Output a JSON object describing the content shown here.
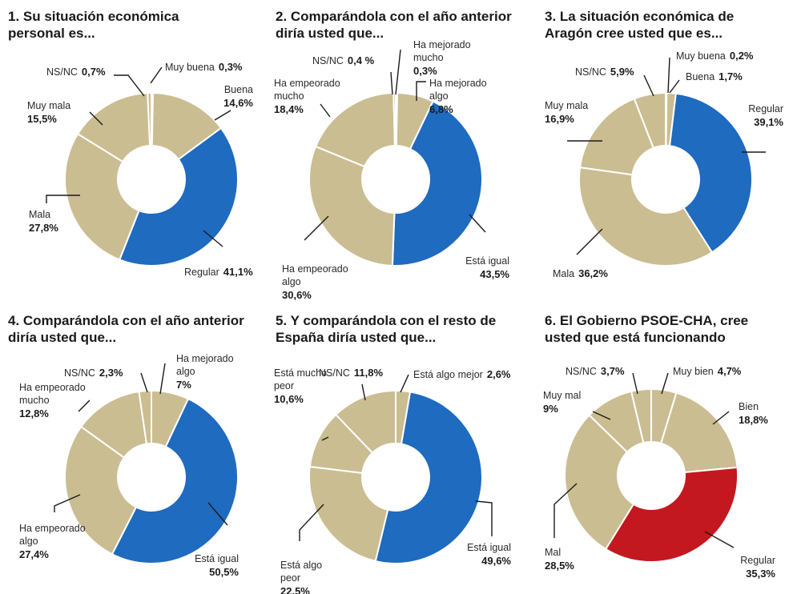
{
  "colors": {
    "neutral": "#cbbd92",
    "blue": "#1e6bbf",
    "red": "#c3181f",
    "stroke": "#ffffff",
    "text": "#1a1a1a"
  },
  "chart_data": [
    {
      "type": "pie",
      "title": [
        "1. Su situación económica",
        "personal es..."
      ],
      "categories": [
        "Muy buena",
        "Buena",
        "Regular",
        "Mala",
        "Muy mala",
        "NS/NC"
      ],
      "display_values": [
        "0,3%",
        "14,6%",
        "41,1%",
        "27,8%",
        "15,5%",
        "0,7%"
      ],
      "values": [
        0.3,
        14.6,
        41.1,
        27.8,
        15.5,
        0.7
      ],
      "highlight": 2
    },
    {
      "type": "pie",
      "title": [
        "2. Comparándola con el año anterior",
        "diría usted que..."
      ],
      "categories": [
        "Ha mejorado mucho",
        "Ha mejorado algo",
        "Está igual",
        "Ha empeorado algo",
        "Ha empeorado mucho",
        "NS/NC"
      ],
      "display_values": [
        "0,3%",
        "6,8%",
        "43,5%",
        "30,6%",
        "18,4%",
        "0,4 %"
      ],
      "values": [
        0.3,
        6.8,
        43.5,
        30.6,
        18.4,
        0.4
      ],
      "highlight": 2
    },
    {
      "type": "pie",
      "title": [
        "3. La situación económica de",
        "Aragón cree usted que es..."
      ],
      "categories": [
        "Muy buena",
        "Buena",
        "Regular",
        "Mala",
        "Muy mala",
        "NS/NC"
      ],
      "display_values": [
        "0,2%",
        "1,7%",
        "39,1%",
        "36,2%",
        "16,9%",
        "5,9%"
      ],
      "values": [
        0.2,
        1.7,
        39.1,
        36.2,
        16.9,
        5.9
      ],
      "highlight": 2
    },
    {
      "type": "pie",
      "title": [
        "4. Comparándola con el año anterior",
        "diría usted que..."
      ],
      "categories": [
        "Ha mejorado algo",
        "Está igual",
        "Ha empeorado algo",
        "Ha empeorado mucho",
        "NS/NC"
      ],
      "display_values": [
        "7%",
        "50,5%",
        "27,4%",
        "12,8%",
        "2,3%"
      ],
      "values": [
        7,
        50.5,
        27.4,
        12.8,
        2.3
      ],
      "highlight": 1
    },
    {
      "type": "pie",
      "title": [
        "5. Y comparándola con el resto de",
        "España diría usted que..."
      ],
      "categories": [
        "Está algo mejor",
        "Está igual",
        "Está algo peor",
        "Está mucho peor",
        "NS/NC"
      ],
      "display_values": [
        "2,6%",
        "49,6%",
        "22,5%",
        "10,6%",
        "11,8%"
      ],
      "values": [
        2.6,
        49.6,
        22.5,
        10.6,
        11.8
      ],
      "highlight": 1
    },
    {
      "type": "pie",
      "title": [
        "6. El Gobierno PSOE-CHA, cree",
        "usted que está funcionando"
      ],
      "categories": [
        "Muy bien",
        "Bien",
        "Regular",
        "Mal",
        "Muy mal",
        "NS/NC"
      ],
      "display_values": [
        "4,7%",
        "18,8%",
        "35,3%",
        "28,5%",
        "9%",
        "3,7%"
      ],
      "values": [
        4.7,
        18.8,
        35.3,
        28.5,
        9,
        3.7
      ],
      "highlight": 2,
      "highlight_color": "red"
    }
  ]
}
